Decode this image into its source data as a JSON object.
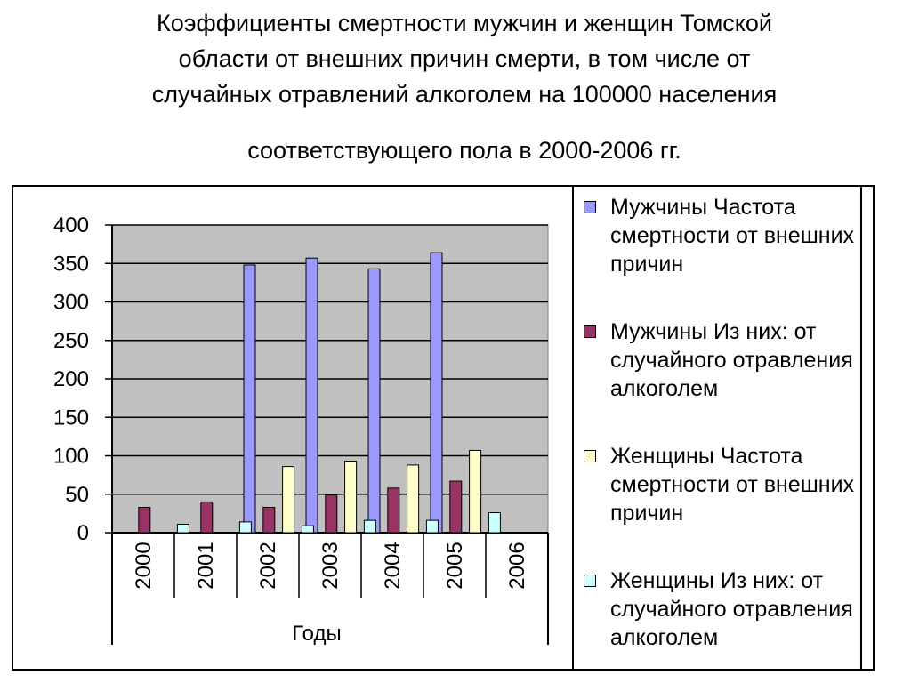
{
  "title_lines": [
    "Коэффициенты смертности мужчин и женщин Томской",
    "области от внешних причин смерти, в том числе от",
    "случайных отравлений алкоголем на 100000 населения",
    "соответствующего пола в 2000-2006 гг."
  ],
  "chart_data": {
    "type": "bar",
    "xlabel": "Годы",
    "ylabel": "",
    "ylim": [
      0,
      400
    ],
    "yticks": [
      0,
      50,
      100,
      150,
      200,
      250,
      300,
      350,
      400
    ],
    "categories": [
      "2000",
      "2001",
      "2002",
      "2003",
      "2004",
      "2005",
      "2006"
    ],
    "grid": true,
    "legend_position": "right",
    "plot_background": "#c0c0c0",
    "series": [
      {
        "name": "Мужчины Частота смертности от внешних причин",
        "color": "#9999ff",
        "values": [
          null,
          null,
          348,
          357,
          343,
          364,
          null
        ]
      },
      {
        "name": "Мужчины Из них: от случайного отравления алкоголем",
        "color": "#993366",
        "values": [
          33,
          40,
          33,
          49,
          58,
          67,
          null
        ]
      },
      {
        "name": "Женщины Частота смертности от внешних причин",
        "color": "#ffffcc",
        "values": [
          null,
          null,
          86,
          93,
          88,
          107,
          null
        ]
      },
      {
        "name": "Женщины Из них: от случайного отравления алкоголем",
        "color": "#ccffff",
        "values": [
          11,
          null,
          9,
          16,
          16,
          26,
          null
        ]
      }
    ],
    "note_2001_female_alcohol": 14
  }
}
